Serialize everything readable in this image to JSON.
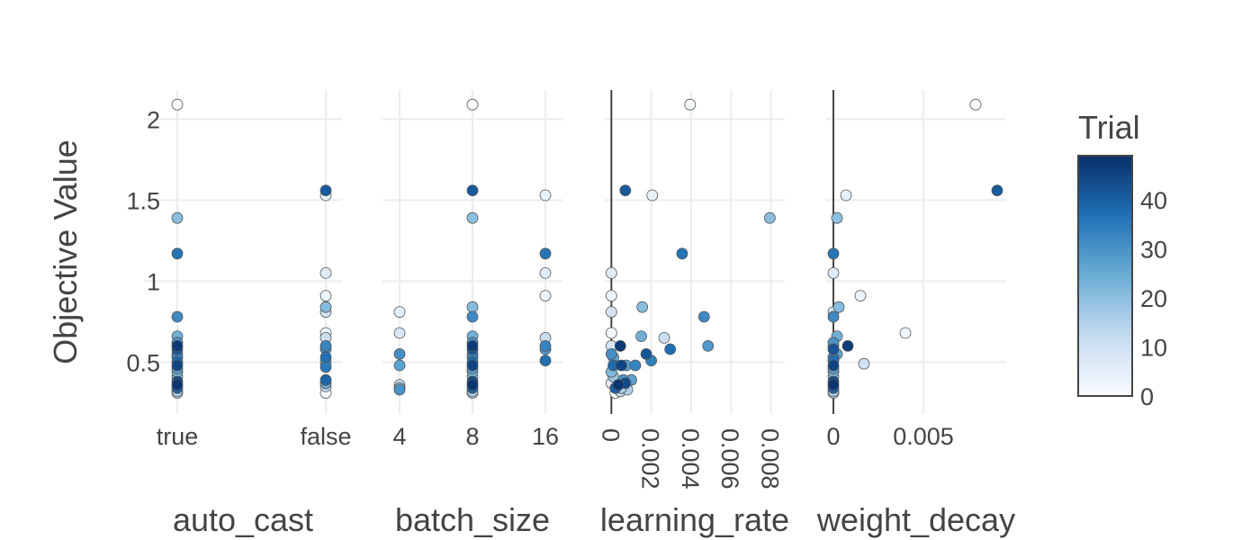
{
  "chart_data": {
    "type": "scatter",
    "ylabel": "Objective Value",
    "y_ticks": [
      0.5,
      1,
      1.5,
      2
    ],
    "y_tick_labels": [
      "0.5",
      "1",
      "1.5",
      "2"
    ],
    "ylim": [
      0.18,
      2.18
    ],
    "colorbar": {
      "title": "Trial",
      "range": [
        0,
        49
      ],
      "ticks": [
        0,
        10,
        20,
        30,
        40
      ],
      "tick_labels": [
        "0",
        "10",
        "20",
        "30",
        "40"
      ],
      "colors": [
        "#f7fbff",
        "#c6dbef",
        "#6baed6",
        "#2171b5",
        "#08306b"
      ]
    },
    "panels": [
      {
        "name": "auto_cast",
        "xlabel": "auto_cast",
        "x_scale": "categorical",
        "categories": [
          "true",
          "false"
        ],
        "x_tick_labels": [
          "true",
          "false"
        ],
        "points": [
          {
            "x": "true",
            "y": 2.09,
            "t": 0
          },
          {
            "x": "true",
            "y": 1.39,
            "t": 20
          },
          {
            "x": "true",
            "y": 1.17,
            "t": 36
          },
          {
            "x": "true",
            "y": 0.78,
            "t": 32
          },
          {
            "x": "true",
            "y": 0.66,
            "t": 24
          },
          {
            "x": "true",
            "y": 0.62,
            "t": 30
          },
          {
            "x": "true",
            "y": 0.6,
            "t": 47
          },
          {
            "x": "true",
            "y": 0.58,
            "t": 42
          },
          {
            "x": "true",
            "y": 0.55,
            "t": 26
          },
          {
            "x": "true",
            "y": 0.53,
            "t": 34
          },
          {
            "x": "true",
            "y": 0.5,
            "t": 38
          },
          {
            "x": "true",
            "y": 0.48,
            "t": 45
          },
          {
            "x": "true",
            "y": 0.46,
            "t": 28
          },
          {
            "x": "true",
            "y": 0.44,
            "t": 22
          },
          {
            "x": "true",
            "y": 0.41,
            "t": 18
          },
          {
            "x": "true",
            "y": 0.38,
            "t": 44
          },
          {
            "x": "true",
            "y": 0.36,
            "t": 48
          },
          {
            "x": "true",
            "y": 0.34,
            "t": 40
          },
          {
            "x": "true",
            "y": 0.32,
            "t": 15
          },
          {
            "x": "true",
            "y": 0.31,
            "t": 12
          },
          {
            "x": "false",
            "y": 1.56,
            "t": 41
          },
          {
            "x": "false",
            "y": 1.53,
            "t": 4
          },
          {
            "x": "false",
            "y": 1.05,
            "t": 6
          },
          {
            "x": "false",
            "y": 0.91,
            "t": 3
          },
          {
            "x": "false",
            "y": 0.84,
            "t": 21
          },
          {
            "x": "false",
            "y": 0.81,
            "t": 9
          },
          {
            "x": "false",
            "y": 0.68,
            "t": 2
          },
          {
            "x": "false",
            "y": 0.65,
            "t": 11
          },
          {
            "x": "false",
            "y": 0.6,
            "t": 33
          },
          {
            "x": "false",
            "y": 0.58,
            "t": 29
          },
          {
            "x": "false",
            "y": 0.53,
            "t": 37
          },
          {
            "x": "false",
            "y": 0.5,
            "t": 27
          },
          {
            "x": "false",
            "y": 0.47,
            "t": 35
          },
          {
            "x": "false",
            "y": 0.39,
            "t": 39
          },
          {
            "x": "false",
            "y": 0.37,
            "t": 25
          },
          {
            "x": "false",
            "y": 0.35,
            "t": 14
          },
          {
            "x": "false",
            "y": 0.31,
            "t": 1
          }
        ]
      },
      {
        "name": "batch_size",
        "xlabel": "batch_size",
        "x_scale": "categorical",
        "categories": [
          "4",
          "8",
          "16"
        ],
        "x_tick_labels": [
          "4",
          "8",
          "16"
        ],
        "points": [
          {
            "x": "4",
            "y": 0.81,
            "t": 5
          },
          {
            "x": "4",
            "y": 0.68,
            "t": 8
          },
          {
            "x": "4",
            "y": 0.55,
            "t": 31
          },
          {
            "x": "4",
            "y": 0.48,
            "t": 27
          },
          {
            "x": "4",
            "y": 0.36,
            "t": 13
          },
          {
            "x": "4",
            "y": 0.34,
            "t": 16
          },
          {
            "x": "4",
            "y": 0.33,
            "t": 30
          },
          {
            "x": "8",
            "y": 2.09,
            "t": 0
          },
          {
            "x": "8",
            "y": 1.56,
            "t": 41
          },
          {
            "x": "8",
            "y": 1.39,
            "t": 20
          },
          {
            "x": "8",
            "y": 0.84,
            "t": 21
          },
          {
            "x": "8",
            "y": 0.78,
            "t": 32
          },
          {
            "x": "8",
            "y": 0.66,
            "t": 24
          },
          {
            "x": "8",
            "y": 0.62,
            "t": 30
          },
          {
            "x": "8",
            "y": 0.6,
            "t": 47
          },
          {
            "x": "8",
            "y": 0.58,
            "t": 42
          },
          {
            "x": "8",
            "y": 0.55,
            "t": 26
          },
          {
            "x": "8",
            "y": 0.53,
            "t": 34
          },
          {
            "x": "8",
            "y": 0.5,
            "t": 38
          },
          {
            "x": "8",
            "y": 0.48,
            "t": 45
          },
          {
            "x": "8",
            "y": 0.46,
            "t": 28
          },
          {
            "x": "8",
            "y": 0.44,
            "t": 22
          },
          {
            "x": "8",
            "y": 0.41,
            "t": 18
          },
          {
            "x": "8",
            "y": 0.38,
            "t": 44
          },
          {
            "x": "8",
            "y": 0.36,
            "t": 48
          },
          {
            "x": "8",
            "y": 0.34,
            "t": 40
          },
          {
            "x": "8",
            "y": 0.32,
            "t": 15
          },
          {
            "x": "8",
            "y": 0.31,
            "t": 12
          },
          {
            "x": "16",
            "y": 1.53,
            "t": 4
          },
          {
            "x": "16",
            "y": 1.17,
            "t": 36
          },
          {
            "x": "16",
            "y": 1.05,
            "t": 6
          },
          {
            "x": "16",
            "y": 0.91,
            "t": 3
          },
          {
            "x": "16",
            "y": 0.65,
            "t": 11
          },
          {
            "x": "16",
            "y": 0.6,
            "t": 33
          },
          {
            "x": "16",
            "y": 0.58,
            "t": 29
          },
          {
            "x": "16",
            "y": 0.51,
            "t": 37
          }
        ]
      },
      {
        "name": "learning_rate",
        "xlabel": "learning_rate",
        "x_scale": "linear",
        "xlim": [
          -0.00015,
          0.00852
        ],
        "x_ticks": [
          0,
          0.002,
          0.004,
          0.006,
          0.008
        ],
        "x_tick_labels": [
          "0",
          "0.002",
          "0.004",
          "0.006",
          "0.008"
        ],
        "x_tick_rotation": 90,
        "zero_line": true,
        "points": [
          {
            "x": 0.00395,
            "y": 2.09,
            "t": 0
          },
          {
            "x": 0.0007,
            "y": 1.56,
            "t": 41
          },
          {
            "x": 0.00205,
            "y": 1.53,
            "t": 4
          },
          {
            "x": 0.00795,
            "y": 1.39,
            "t": 20
          },
          {
            "x": 0.00355,
            "y": 1.17,
            "t": 36
          },
          {
            "x": 0.0,
            "y": 1.05,
            "t": 6
          },
          {
            "x": 0.0,
            "y": 0.91,
            "t": 3
          },
          {
            "x": 0.00155,
            "y": 0.84,
            "t": 21
          },
          {
            "x": 0.0,
            "y": 0.81,
            "t": 9
          },
          {
            "x": 0.00465,
            "y": 0.78,
            "t": 32
          },
          {
            "x": 0.0,
            "y": 0.68,
            "t": 2
          },
          {
            "x": 0.0015,
            "y": 0.66,
            "t": 24
          },
          {
            "x": 0.00265,
            "y": 0.65,
            "t": 11
          },
          {
            "x": 0.0,
            "y": 0.6,
            "t": 8
          },
          {
            "x": 0.00045,
            "y": 0.6,
            "t": 47
          },
          {
            "x": 0.00485,
            "y": 0.6,
            "t": 29
          },
          {
            "x": 0.00295,
            "y": 0.58,
            "t": 37
          },
          {
            "x": 0.0,
            "y": 0.55,
            "t": 31
          },
          {
            "x": 0.00175,
            "y": 0.55,
            "t": 42
          },
          {
            "x": 0.0001,
            "y": 0.53,
            "t": 26
          },
          {
            "x": 0.002,
            "y": 0.51,
            "t": 34
          },
          {
            "x": 0.0001,
            "y": 0.48,
            "t": 38
          },
          {
            "x": 0.0005,
            "y": 0.48,
            "t": 45
          },
          {
            "x": 0.00075,
            "y": 0.48,
            "t": 28
          },
          {
            "x": 0.0012,
            "y": 0.48,
            "t": 33
          },
          {
            "x": 0.0,
            "y": 0.44,
            "t": 22
          },
          {
            "x": 0.0001,
            "y": 0.41,
            "t": 18
          },
          {
            "x": 0.0006,
            "y": 0.39,
            "t": 30
          },
          {
            "x": 0.001,
            "y": 0.39,
            "t": 27
          },
          {
            "x": 0.0,
            "y": 0.37,
            "t": 5
          },
          {
            "x": 0.0007,
            "y": 0.37,
            "t": 44
          },
          {
            "x": 0.00035,
            "y": 0.36,
            "t": 48
          },
          {
            "x": 0.0002,
            "y": 0.34,
            "t": 40
          },
          {
            "x": 0.0005,
            "y": 0.34,
            "t": 16
          },
          {
            "x": 0.0008,
            "y": 0.33,
            "t": 15
          },
          {
            "x": 0.00045,
            "y": 0.32,
            "t": 12
          },
          {
            "x": 0.0002,
            "y": 0.31,
            "t": 1
          }
        ]
      },
      {
        "name": "weight_decay",
        "xlabel": "weight_decay",
        "x_scale": "linear",
        "xlim": [
          -0.0002,
          0.0094
        ],
        "x_ticks": [
          0,
          0.005
        ],
        "x_tick_labels": [
          "0",
          "0.005"
        ],
        "x_tick_rotation": 0,
        "zero_line": true,
        "points": [
          {
            "x": 0.0079,
            "y": 2.09,
            "t": 0
          },
          {
            "x": 0.0091,
            "y": 1.56,
            "t": 41
          },
          {
            "x": 0.0007,
            "y": 1.53,
            "t": 4
          },
          {
            "x": 0.0002,
            "y": 1.39,
            "t": 20
          },
          {
            "x": 0.0,
            "y": 1.17,
            "t": 36
          },
          {
            "x": 0.0,
            "y": 1.05,
            "t": 6
          },
          {
            "x": 0.0015,
            "y": 0.91,
            "t": 3
          },
          {
            "x": 0.0003,
            "y": 0.84,
            "t": 21
          },
          {
            "x": 0.0,
            "y": 0.81,
            "t": 9
          },
          {
            "x": 0.0,
            "y": 0.78,
            "t": 32
          },
          {
            "x": 0.004,
            "y": 0.68,
            "t": 2
          },
          {
            "x": 0.0002,
            "y": 0.66,
            "t": 24
          },
          {
            "x": 0.0,
            "y": 0.62,
            "t": 30
          },
          {
            "x": 0.0008,
            "y": 0.6,
            "t": 47
          },
          {
            "x": 0.0,
            "y": 0.6,
            "t": 29
          },
          {
            "x": 0.0,
            "y": 0.58,
            "t": 42
          },
          {
            "x": 0.0002,
            "y": 0.55,
            "t": 26
          },
          {
            "x": 0.0,
            "y": 0.53,
            "t": 34
          },
          {
            "x": 0.0,
            "y": 0.51,
            "t": 37
          },
          {
            "x": 0.0017,
            "y": 0.49,
            "t": 10
          },
          {
            "x": 0.0,
            "y": 0.48,
            "t": 45
          },
          {
            "x": 0.0,
            "y": 0.46,
            "t": 28
          },
          {
            "x": 0.0,
            "y": 0.44,
            "t": 22
          },
          {
            "x": 0.0,
            "y": 0.41,
            "t": 18
          },
          {
            "x": 0.0,
            "y": 0.38,
            "t": 44
          },
          {
            "x": 0.0,
            "y": 0.36,
            "t": 48
          },
          {
            "x": 0.0,
            "y": 0.34,
            "t": 40
          },
          {
            "x": 0.0,
            "y": 0.32,
            "t": 15
          },
          {
            "x": 0.0,
            "y": 0.31,
            "t": 12
          }
        ]
      }
    ]
  }
}
